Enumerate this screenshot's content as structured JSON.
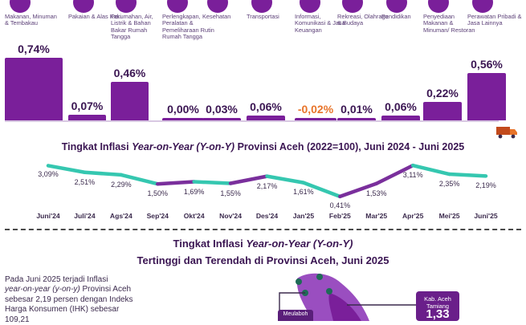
{
  "categories": [
    {
      "label": "Makanan, Minuman & Tembakau",
      "icon": "food-basket-icon",
      "value": 0.74,
      "value_label": "0,74%"
    },
    {
      "label": "Pakaian & Alas Kaki",
      "icon": "shirt-icon",
      "value": 0.07,
      "value_label": "0,07%"
    },
    {
      "label": "Perumahan, Air, Listrik & Bahan Bakar Rumah Tangga",
      "icon": "house-icon",
      "value": 0.46,
      "value_label": "0,46%"
    },
    {
      "label": "Perlengkapan, Peralatan & Pemeliharaan Rutin Rumah Tangga",
      "icon": "sofa-icon",
      "value": 0.0,
      "value_label": "0,00%"
    },
    {
      "label": "Kesehatan",
      "icon": "medical-kit-icon",
      "value": 0.03,
      "value_label": "0,03%"
    },
    {
      "label": "Transportasi",
      "icon": "car-icon",
      "value": 0.06,
      "value_label": "0,06%"
    },
    {
      "label": "Informasi, Komunikasi & Jasa Keuangan",
      "icon": "phone-icon",
      "value": -0.02,
      "value_label": "-0,02%"
    },
    {
      "label": "Rekreasi, Olahraga & Budaya",
      "icon": "runner-icon",
      "value": 0.01,
      "value_label": "0,01%"
    },
    {
      "label": "Pendidikan",
      "icon": "book-icon",
      "value": 0.06,
      "value_label": "0,06%"
    },
    {
      "label": "Penyediaan Makanan & Minuman/ Restoran",
      "icon": "restaurant-icon",
      "value": 0.22,
      "value_label": "0,22%"
    },
    {
      "label": "Perawatan Pribadi & Jasa Lainnya",
      "icon": "personal-care-icon",
      "value": 0.56,
      "value_label": "0,56%"
    }
  ],
  "colors": {
    "bar": "#7a1f9a",
    "negative": "#e8742a",
    "line_up": "#7a2f9c",
    "line_down": "#35c7b0",
    "title": "#3a1552"
  },
  "chart_data": {
    "type": "line",
    "title_prefix": "Tingkat Inflasi ",
    "title_italic": "Year-on-Year (Y-on-Y)",
    "title_suffix": " Provinsi Aceh (2022=100), Juni 2024 - Juni 2025",
    "categories": [
      "Juni'24",
      "Juli'24",
      "Ags'24",
      "Sep'24",
      "Okt'24",
      "Nov'24",
      "Des'24",
      "Jan'25",
      "Feb'25",
      "Mar'25",
      "Apr'25",
      "Mei'25",
      "Juni'25"
    ],
    "values": [
      3.09,
      2.51,
      2.29,
      1.5,
      1.69,
      1.55,
      2.17,
      1.61,
      0.41,
      1.53,
      3.11,
      2.35,
      2.19
    ],
    "value_labels": [
      "3,09%",
      "2,51%",
      "2,29%",
      "1,50%",
      "1,69%",
      "1,55%",
      "2,17%",
      "1,61%",
      "0,41%",
      "1,53%",
      "3,11%",
      "2,35%",
      "2,19%"
    ]
  },
  "section2": {
    "title_prefix": "Tingkat Inflasi ",
    "title_italic": "Year-on-Year (Y-on-Y)",
    "title_line2": "Tertinggi dan Terendah di Provinsi Aceh, Juni 2025",
    "paragraph_a": "Pada Juni 2025 terjadi Inflasi",
    "paragraph_b": "year-on-year (y-on-y)",
    "paragraph_c": " Provinsi Aceh sebesar 2,19 persen dengan Indeks Harga Konsumen (IHK) sebesar 109,21",
    "map_label_left": "Meulaboh",
    "map_label_right": "Kab. Aceh Tamiang",
    "map_value_right": "1,33"
  }
}
